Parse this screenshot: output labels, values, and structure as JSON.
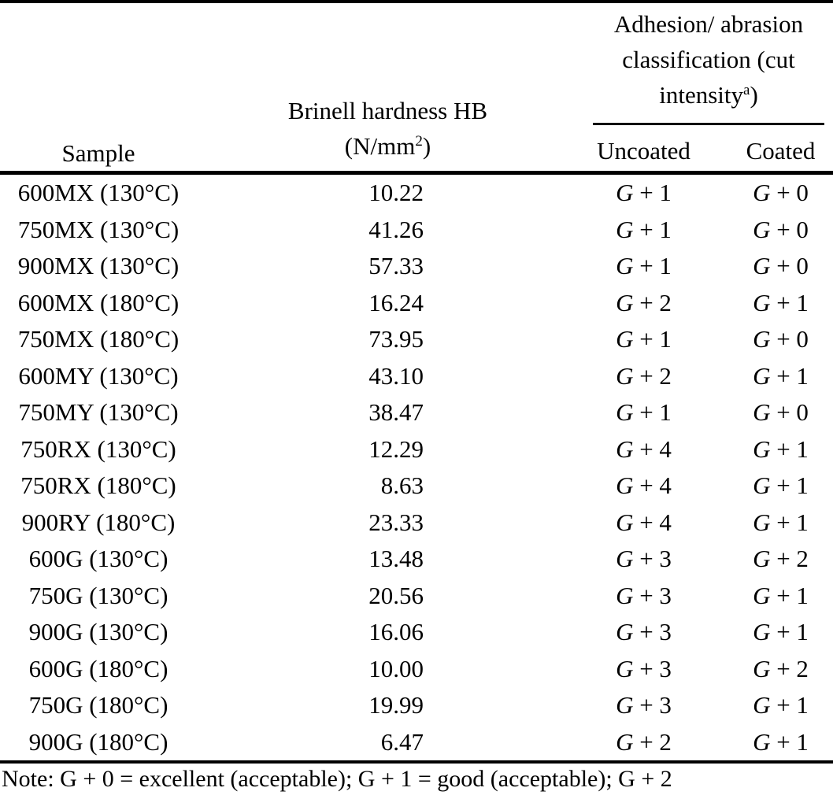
{
  "table": {
    "headers": {
      "sample": "Sample",
      "hb_line1": "Brinell hardness HB",
      "hb_line2_open": "(N/mm",
      "hb_line2_sup": "2",
      "hb_line2_close": ")",
      "group_line1": "Adhesion/ abrasion",
      "group_line2": "classification (cut",
      "group_line3_base": "intensity",
      "group_line3_sup": "a",
      "group_line3_close": ")",
      "uncoated": "Uncoated",
      "coated": "Coated"
    },
    "rows": [
      {
        "sample": "600MX (130°C)",
        "hb": "10.22",
        "uncoated": "G + 1",
        "coated": "G + 0"
      },
      {
        "sample": "750MX (130°C)",
        "hb": "41.26",
        "uncoated": "G + 1",
        "coated": "G + 0"
      },
      {
        "sample": "900MX (130°C)",
        "hb": "57.33",
        "uncoated": "G + 1",
        "coated": "G + 0"
      },
      {
        "sample": "600MX (180°C)",
        "hb": "16.24",
        "uncoated": "G + 2",
        "coated": "G + 1"
      },
      {
        "sample": "750MX (180°C)",
        "hb": "73.95",
        "uncoated": "G + 1",
        "coated": "G + 0"
      },
      {
        "sample": "600MY (130°C)",
        "hb": "43.10",
        "uncoated": "G + 2",
        "coated": "G + 1"
      },
      {
        "sample": "750MY (130°C)",
        "hb": "38.47",
        "uncoated": "G + 1",
        "coated": "G + 0"
      },
      {
        "sample": "750RX (130°C)",
        "hb": "12.29",
        "uncoated": "G + 4",
        "coated": "G + 1"
      },
      {
        "sample": "750RX (180°C)",
        "hb": "8.63",
        "uncoated": "G + 4",
        "coated": "G + 1"
      },
      {
        "sample": "900RY (180°C)",
        "hb": "23.33",
        "uncoated": "G + 4",
        "coated": "G + 1"
      },
      {
        "sample": "600G (130°C)",
        "hb": "13.48",
        "uncoated": "G + 3",
        "coated": "G + 2"
      },
      {
        "sample": "750G (130°C)",
        "hb": "20.56",
        "uncoated": "G + 3",
        "coated": "G + 1"
      },
      {
        "sample": "900G (130°C)",
        "hb": "16.06",
        "uncoated": "G + 3",
        "coated": "G + 1"
      },
      {
        "sample": "600G (180°C)",
        "hb": "10.00",
        "uncoated": "G + 3",
        "coated": "G + 2"
      },
      {
        "sample": "750G (180°C)",
        "hb": "19.99",
        "uncoated": "G + 3",
        "coated": "G + 1"
      },
      {
        "sample": "900G (180°C)",
        "hb": "6.47",
        "uncoated": "G + 2",
        "coated": "G + 1"
      }
    ],
    "note": "Note: G + 0 = excellent (acceptable); G + 1 = good (acceptable); G + 2"
  },
  "colors": {
    "text": "#000000",
    "background": "#ffffff",
    "rule": "#000000"
  }
}
